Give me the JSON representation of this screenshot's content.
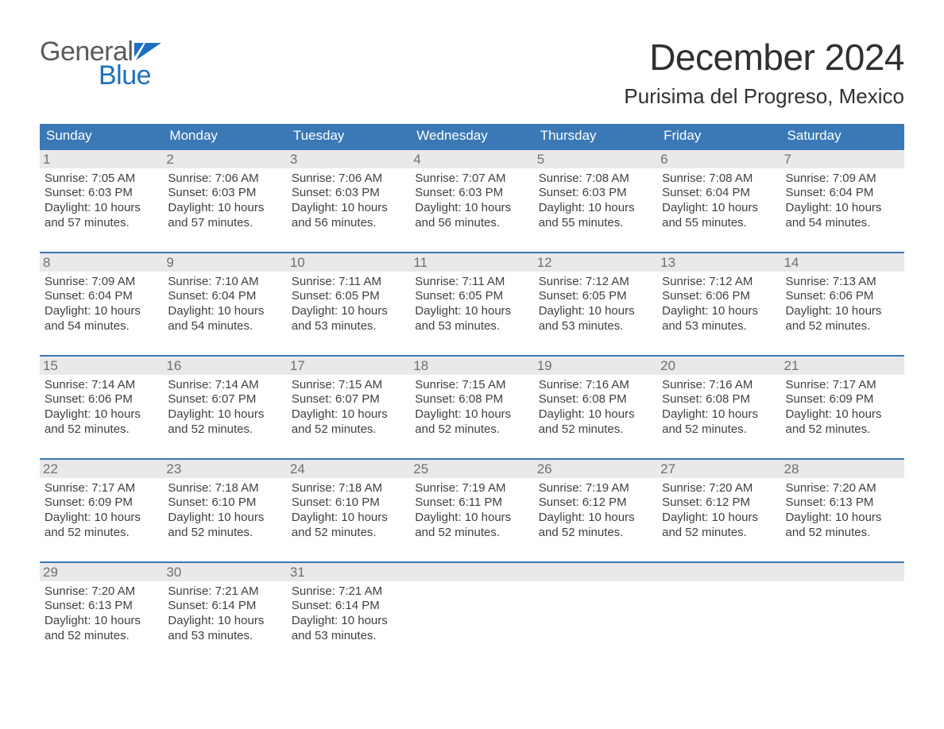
{
  "colors": {
    "header_bg": "#3a78b6",
    "header_text": "#ffffff",
    "week_rule": "#3a78b6",
    "daynum_bg": "#e9e9e9",
    "daynum_text": "#707070",
    "info_text": "#404040",
    "logo_gray": "#5a5a5a",
    "logo_blue": "#1f6fbf",
    "page_bg": "#ffffff"
  },
  "typography": {
    "title_fontsize": 46,
    "location_fontsize": 26,
    "dow_fontsize": 17,
    "daynum_fontsize": 17,
    "info_fontsize": 15,
    "logo_fontsize": 34
  },
  "logo": {
    "line1": "General",
    "line2": "Blue"
  },
  "title": "December 2024",
  "location": "Purisima del Progreso, Mexico",
  "dow": [
    "Sunday",
    "Monday",
    "Tuesday",
    "Wednesday",
    "Thursday",
    "Friday",
    "Saturday"
  ],
  "weeks": [
    [
      {
        "n": "1",
        "sunrise": "Sunrise: 7:05 AM",
        "sunset": "Sunset: 6:03 PM",
        "day1": "Daylight: 10 hours",
        "day2": "and 57 minutes."
      },
      {
        "n": "2",
        "sunrise": "Sunrise: 7:06 AM",
        "sunset": "Sunset: 6:03 PM",
        "day1": "Daylight: 10 hours",
        "day2": "and 57 minutes."
      },
      {
        "n": "3",
        "sunrise": "Sunrise: 7:06 AM",
        "sunset": "Sunset: 6:03 PM",
        "day1": "Daylight: 10 hours",
        "day2": "and 56 minutes."
      },
      {
        "n": "4",
        "sunrise": "Sunrise: 7:07 AM",
        "sunset": "Sunset: 6:03 PM",
        "day1": "Daylight: 10 hours",
        "day2": "and 56 minutes."
      },
      {
        "n": "5",
        "sunrise": "Sunrise: 7:08 AM",
        "sunset": "Sunset: 6:03 PM",
        "day1": "Daylight: 10 hours",
        "day2": "and 55 minutes."
      },
      {
        "n": "6",
        "sunrise": "Sunrise: 7:08 AM",
        "sunset": "Sunset: 6:04 PM",
        "day1": "Daylight: 10 hours",
        "day2": "and 55 minutes."
      },
      {
        "n": "7",
        "sunrise": "Sunrise: 7:09 AM",
        "sunset": "Sunset: 6:04 PM",
        "day1": "Daylight: 10 hours",
        "day2": "and 54 minutes."
      }
    ],
    [
      {
        "n": "8",
        "sunrise": "Sunrise: 7:09 AM",
        "sunset": "Sunset: 6:04 PM",
        "day1": "Daylight: 10 hours",
        "day2": "and 54 minutes."
      },
      {
        "n": "9",
        "sunrise": "Sunrise: 7:10 AM",
        "sunset": "Sunset: 6:04 PM",
        "day1": "Daylight: 10 hours",
        "day2": "and 54 minutes."
      },
      {
        "n": "10",
        "sunrise": "Sunrise: 7:11 AM",
        "sunset": "Sunset: 6:05 PM",
        "day1": "Daylight: 10 hours",
        "day2": "and 53 minutes."
      },
      {
        "n": "11",
        "sunrise": "Sunrise: 7:11 AM",
        "sunset": "Sunset: 6:05 PM",
        "day1": "Daylight: 10 hours",
        "day2": "and 53 minutes."
      },
      {
        "n": "12",
        "sunrise": "Sunrise: 7:12 AM",
        "sunset": "Sunset: 6:05 PM",
        "day1": "Daylight: 10 hours",
        "day2": "and 53 minutes."
      },
      {
        "n": "13",
        "sunrise": "Sunrise: 7:12 AM",
        "sunset": "Sunset: 6:06 PM",
        "day1": "Daylight: 10 hours",
        "day2": "and 53 minutes."
      },
      {
        "n": "14",
        "sunrise": "Sunrise: 7:13 AM",
        "sunset": "Sunset: 6:06 PM",
        "day1": "Daylight: 10 hours",
        "day2": "and 52 minutes."
      }
    ],
    [
      {
        "n": "15",
        "sunrise": "Sunrise: 7:14 AM",
        "sunset": "Sunset: 6:06 PM",
        "day1": "Daylight: 10 hours",
        "day2": "and 52 minutes."
      },
      {
        "n": "16",
        "sunrise": "Sunrise: 7:14 AM",
        "sunset": "Sunset: 6:07 PM",
        "day1": "Daylight: 10 hours",
        "day2": "and 52 minutes."
      },
      {
        "n": "17",
        "sunrise": "Sunrise: 7:15 AM",
        "sunset": "Sunset: 6:07 PM",
        "day1": "Daylight: 10 hours",
        "day2": "and 52 minutes."
      },
      {
        "n": "18",
        "sunrise": "Sunrise: 7:15 AM",
        "sunset": "Sunset: 6:08 PM",
        "day1": "Daylight: 10 hours",
        "day2": "and 52 minutes."
      },
      {
        "n": "19",
        "sunrise": "Sunrise: 7:16 AM",
        "sunset": "Sunset: 6:08 PM",
        "day1": "Daylight: 10 hours",
        "day2": "and 52 minutes."
      },
      {
        "n": "20",
        "sunrise": "Sunrise: 7:16 AM",
        "sunset": "Sunset: 6:08 PM",
        "day1": "Daylight: 10 hours",
        "day2": "and 52 minutes."
      },
      {
        "n": "21",
        "sunrise": "Sunrise: 7:17 AM",
        "sunset": "Sunset: 6:09 PM",
        "day1": "Daylight: 10 hours",
        "day2": "and 52 minutes."
      }
    ],
    [
      {
        "n": "22",
        "sunrise": "Sunrise: 7:17 AM",
        "sunset": "Sunset: 6:09 PM",
        "day1": "Daylight: 10 hours",
        "day2": "and 52 minutes."
      },
      {
        "n": "23",
        "sunrise": "Sunrise: 7:18 AM",
        "sunset": "Sunset: 6:10 PM",
        "day1": "Daylight: 10 hours",
        "day2": "and 52 minutes."
      },
      {
        "n": "24",
        "sunrise": "Sunrise: 7:18 AM",
        "sunset": "Sunset: 6:10 PM",
        "day1": "Daylight: 10 hours",
        "day2": "and 52 minutes."
      },
      {
        "n": "25",
        "sunrise": "Sunrise: 7:19 AM",
        "sunset": "Sunset: 6:11 PM",
        "day1": "Daylight: 10 hours",
        "day2": "and 52 minutes."
      },
      {
        "n": "26",
        "sunrise": "Sunrise: 7:19 AM",
        "sunset": "Sunset: 6:12 PM",
        "day1": "Daylight: 10 hours",
        "day2": "and 52 minutes."
      },
      {
        "n": "27",
        "sunrise": "Sunrise: 7:20 AM",
        "sunset": "Sunset: 6:12 PM",
        "day1": "Daylight: 10 hours",
        "day2": "and 52 minutes."
      },
      {
        "n": "28",
        "sunrise": "Sunrise: 7:20 AM",
        "sunset": "Sunset: 6:13 PM",
        "day1": "Daylight: 10 hours",
        "day2": "and 52 minutes."
      }
    ],
    [
      {
        "n": "29",
        "sunrise": "Sunrise: 7:20 AM",
        "sunset": "Sunset: 6:13 PM",
        "day1": "Daylight: 10 hours",
        "day2": "and 52 minutes."
      },
      {
        "n": "30",
        "sunrise": "Sunrise: 7:21 AM",
        "sunset": "Sunset: 6:14 PM",
        "day1": "Daylight: 10 hours",
        "day2": "and 53 minutes."
      },
      {
        "n": "31",
        "sunrise": "Sunrise: 7:21 AM",
        "sunset": "Sunset: 6:14 PM",
        "day1": "Daylight: 10 hours",
        "day2": "and 53 minutes."
      },
      {
        "n": "",
        "empty": true
      },
      {
        "n": "",
        "empty": true
      },
      {
        "n": "",
        "empty": true
      },
      {
        "n": "",
        "empty": true
      }
    ]
  ]
}
